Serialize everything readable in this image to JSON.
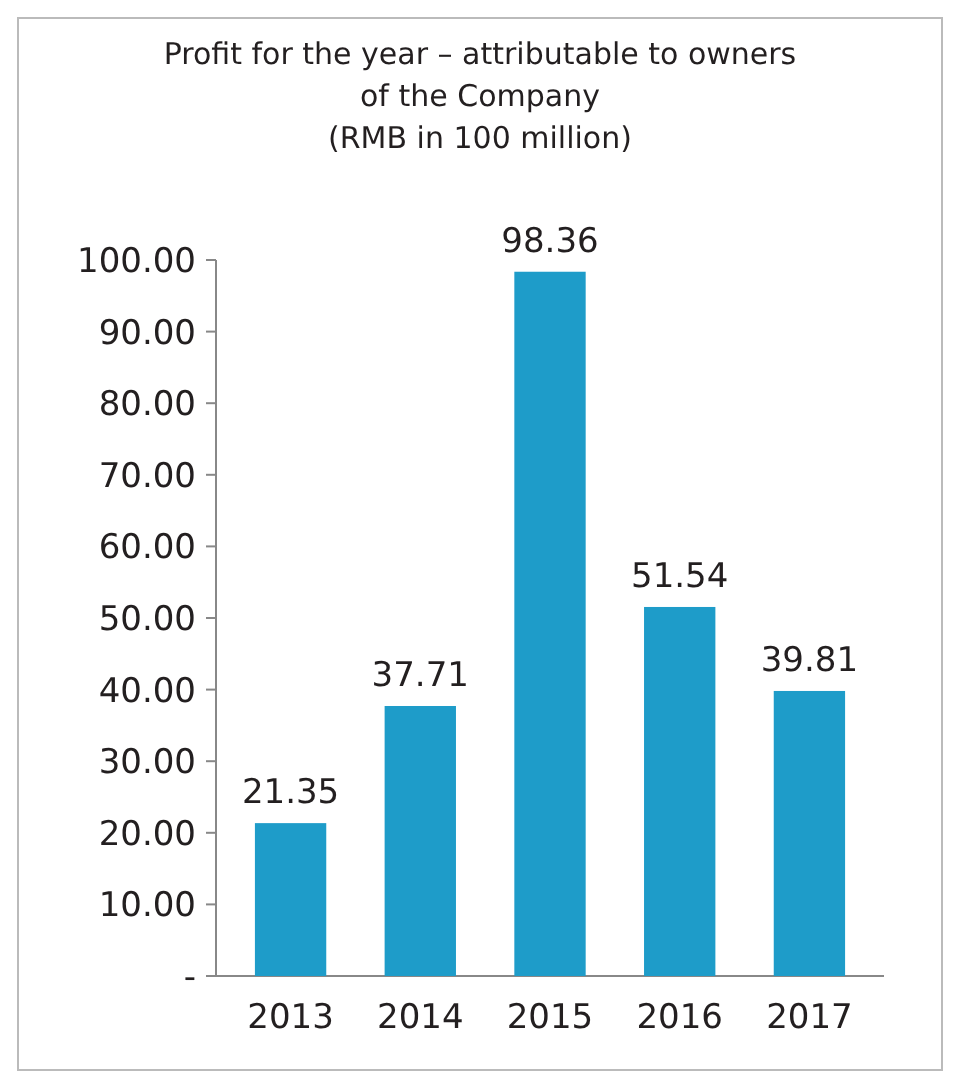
{
  "chart_data": {
    "type": "bar",
    "title": "Profit for the year – attributable to owners of the Company",
    "subtitle": "(RMB in 100 million)",
    "categories": [
      "2013",
      "2014",
      "2015",
      "2016",
      "2017"
    ],
    "values": [
      21.35,
      37.71,
      98.36,
      51.54,
      39.81
    ],
    "color": "#1e9cc9",
    "ylim": [
      0,
      100
    ],
    "yticks": [
      {
        "value": 0,
        "label": "-"
      },
      {
        "value": 10,
        "label": "10.00"
      },
      {
        "value": 20,
        "label": "20.00"
      },
      {
        "value": 30,
        "label": "30.00"
      },
      {
        "value": 40,
        "label": "40.00"
      },
      {
        "value": 50,
        "label": "50.00"
      },
      {
        "value": 60,
        "label": "60.00"
      },
      {
        "value": 70,
        "label": "70.00"
      },
      {
        "value": 80,
        "label": "80.00"
      },
      {
        "value": 90,
        "label": "90.00"
      },
      {
        "value": 100,
        "label": "100.00"
      }
    ],
    "data_labels": true,
    "grid": false
  }
}
